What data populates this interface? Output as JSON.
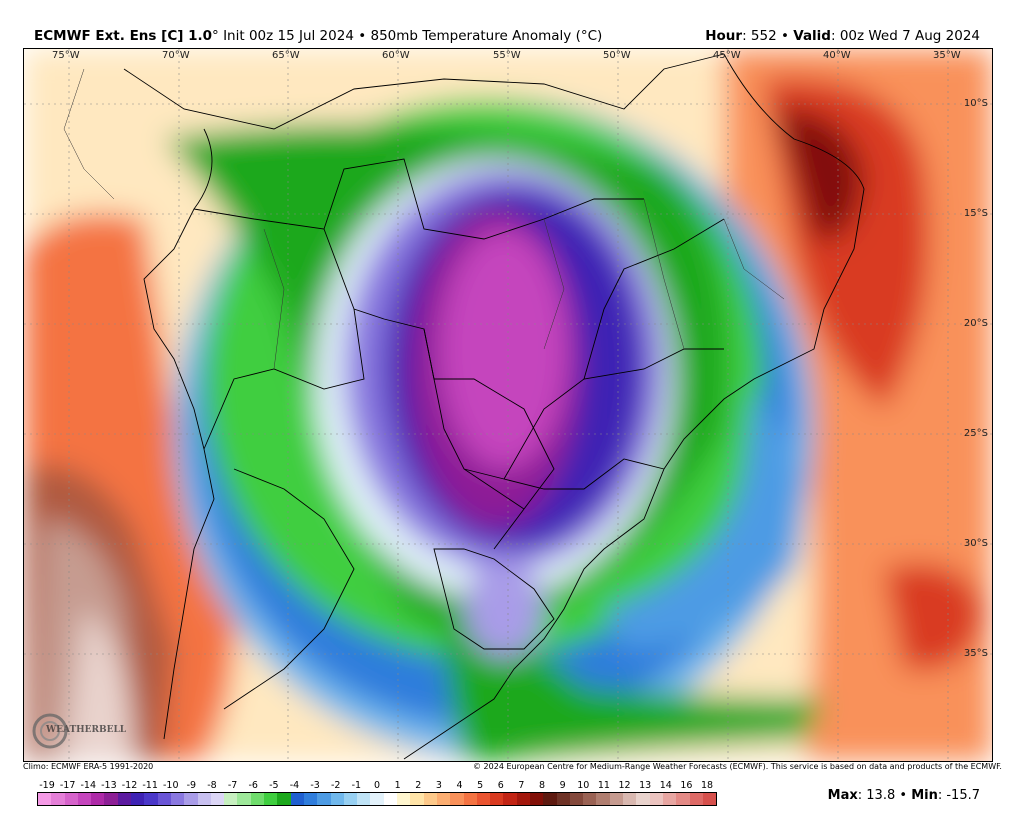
{
  "header": {
    "model": "ECMWF Ext. Ens [C] 1.0",
    "degree": "°",
    "init": "Init 00z 15 Jul 2024",
    "sep": "•",
    "field": "850mb Temperature Anomaly (°C)",
    "hour_label": "Hour",
    "hour_value": ": 552",
    "valid_label": "Valid",
    "valid_value": ": 00z Wed 7 Aug 2024"
  },
  "map": {
    "lon_labels": [
      "75°W",
      "70°W",
      "65°W",
      "60°W",
      "55°W",
      "50°W",
      "45°W",
      "40°W",
      "35°W"
    ],
    "lat_labels": [
      "10°S",
      "15°S",
      "20°S",
      "25°S",
      "30°S",
      "35°S"
    ],
    "logo": "WEATHERBELL"
  },
  "credits": {
    "climo": "Climo: ECMWF ERA-5 1991-2020",
    "copyright": "© 2024 European Centre for Medium-Range Weather Forecasts (ECMWF). This service is based on data and products of the ECMWF."
  },
  "colorbar": {
    "labels": [
      "-19",
      "-17",
      "-14",
      "-13",
      "-12",
      "-11",
      "-10",
      "-9",
      "-8",
      "-7",
      "-6",
      "-5",
      "-4",
      "-3",
      "-2",
      "-1",
      "0",
      "1",
      "2",
      "3",
      "4",
      "5",
      "6",
      "7",
      "8",
      "9",
      "10",
      "11",
      "12",
      "13",
      "14",
      "16",
      "18"
    ],
    "colors": [
      "#f59ae6",
      "#e57fd8",
      "#d663cb",
      "#c545bd",
      "#ae2aa8",
      "#8d1f96",
      "#5c1aa0",
      "#3e22b4",
      "#4a37c9",
      "#6a55d6",
      "#8a78e0",
      "#a99ce8",
      "#c8c0f0",
      "#dcd6f6",
      "#c7f0c0",
      "#9ee89a",
      "#6fdc6c",
      "#3fce3f",
      "#1ca81c",
      "#1f5fd0",
      "#2f7ddc",
      "#4d9be4",
      "#70b8ec",
      "#97d0f2",
      "#bfe3f6",
      "#e3f2fb",
      "#ffffff",
      "#fff6cf",
      "#ffe4a8",
      "#fdc98a",
      "#fcae72",
      "#f9915a",
      "#f47342",
      "#ea5430",
      "#d93a20",
      "#c22414",
      "#a3170c",
      "#821008",
      "#5e1a10",
      "#6e3226",
      "#84493c",
      "#9a6254",
      "#b07e70",
      "#c69b90",
      "#d9b8b0",
      "#e9d3cd",
      "#ecc4c0",
      "#e8a6a2",
      "#e48a86",
      "#de6a66",
      "#d6504c"
    ]
  },
  "stats": {
    "max_label": "Max",
    "max_value": ": 13.8",
    "min_label": "Min",
    "min_value": ": -15.7"
  }
}
